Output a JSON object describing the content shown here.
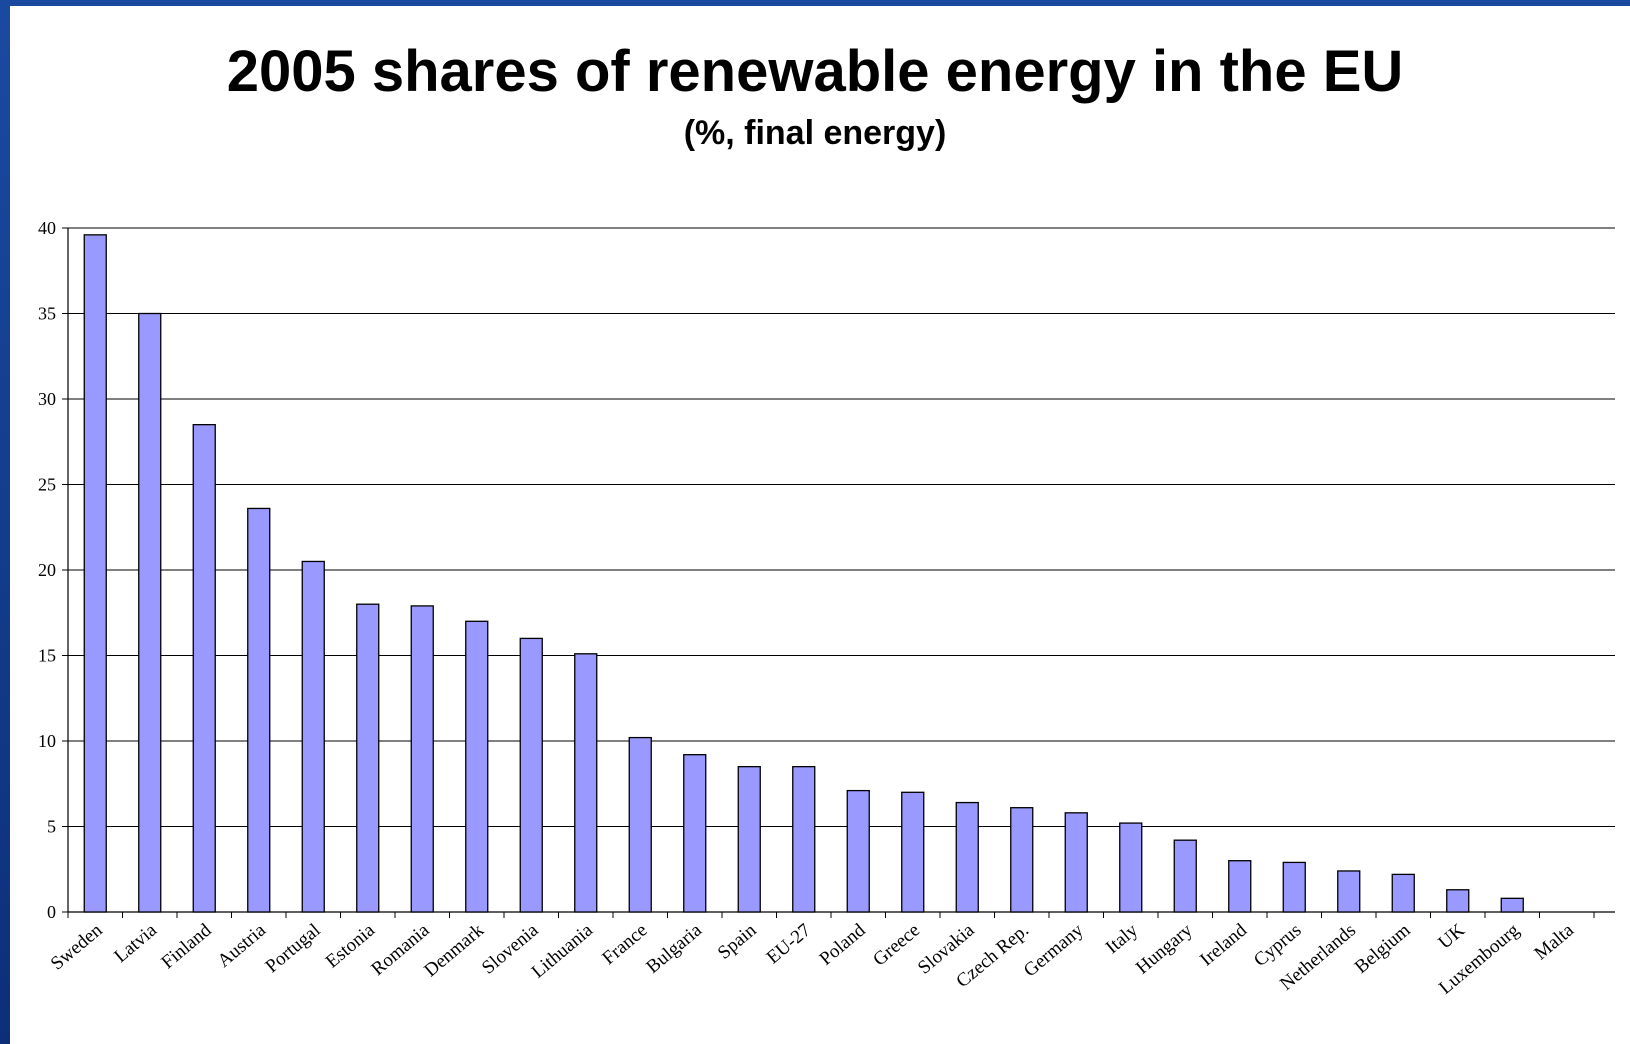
{
  "title": "2005 shares of renewable energy in the EU",
  "subtitle": "(%, final energy)",
  "chart_data": {
    "type": "bar",
    "title": "2005 shares of renewable energy in the EU",
    "subtitle": "(%, final energy)",
    "xlabel": "",
    "ylabel": "",
    "ylim": [
      0,
      40
    ],
    "yticks": [
      0,
      5,
      10,
      15,
      20,
      25,
      30,
      35,
      40
    ],
    "grid": true,
    "bar_color": "#9999ff",
    "categories": [
      "Sweden",
      "Latvia",
      "Finland",
      "Austria",
      "Portugal",
      "Estonia",
      "Romania",
      "Denmark",
      "Slovenia",
      "Lithuania",
      "France",
      "Bulgaria",
      "Spain",
      "EU-27",
      "Poland",
      "Greece",
      "Slovakia",
      "Czech Rep.",
      "Germany",
      "Italy",
      "Hungary",
      "Ireland",
      "Cyprus",
      "Netherlands",
      "Belgium",
      "UK",
      "Luxembourg",
      "Malta"
    ],
    "values": [
      39.6,
      35.0,
      28.5,
      23.6,
      20.5,
      18.0,
      17.9,
      17.0,
      16.0,
      15.1,
      10.2,
      9.2,
      8.5,
      8.5,
      7.1,
      7.0,
      6.4,
      6.1,
      5.8,
      5.2,
      4.2,
      3.0,
      2.9,
      2.4,
      2.2,
      1.3,
      0.8,
      0.0
    ]
  }
}
